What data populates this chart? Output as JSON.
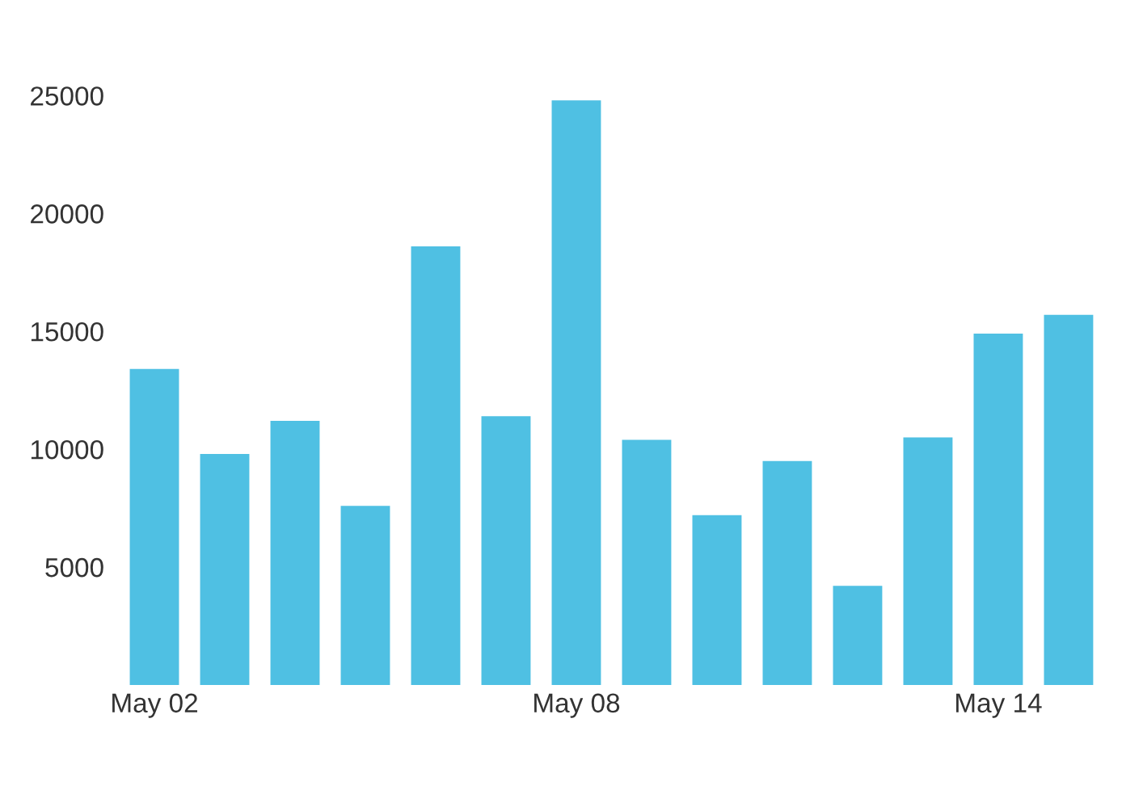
{
  "chart_data": {
    "type": "bar",
    "categories": [
      "May 02",
      null,
      null,
      null,
      null,
      null,
      "May 08",
      null,
      null,
      null,
      null,
      null,
      "May 14",
      null
    ],
    "values": [
      13400,
      9800,
      11200,
      7600,
      18600,
      11400,
      24800,
      10400,
      7200,
      9500,
      4200,
      10500,
      14900,
      15700
    ],
    "color": "#4fc0e3",
    "ylim": [
      0,
      25000
    ],
    "yticks": [
      5000,
      10000,
      15000,
      20000,
      25000
    ],
    "grid": false,
    "legend": false
  }
}
